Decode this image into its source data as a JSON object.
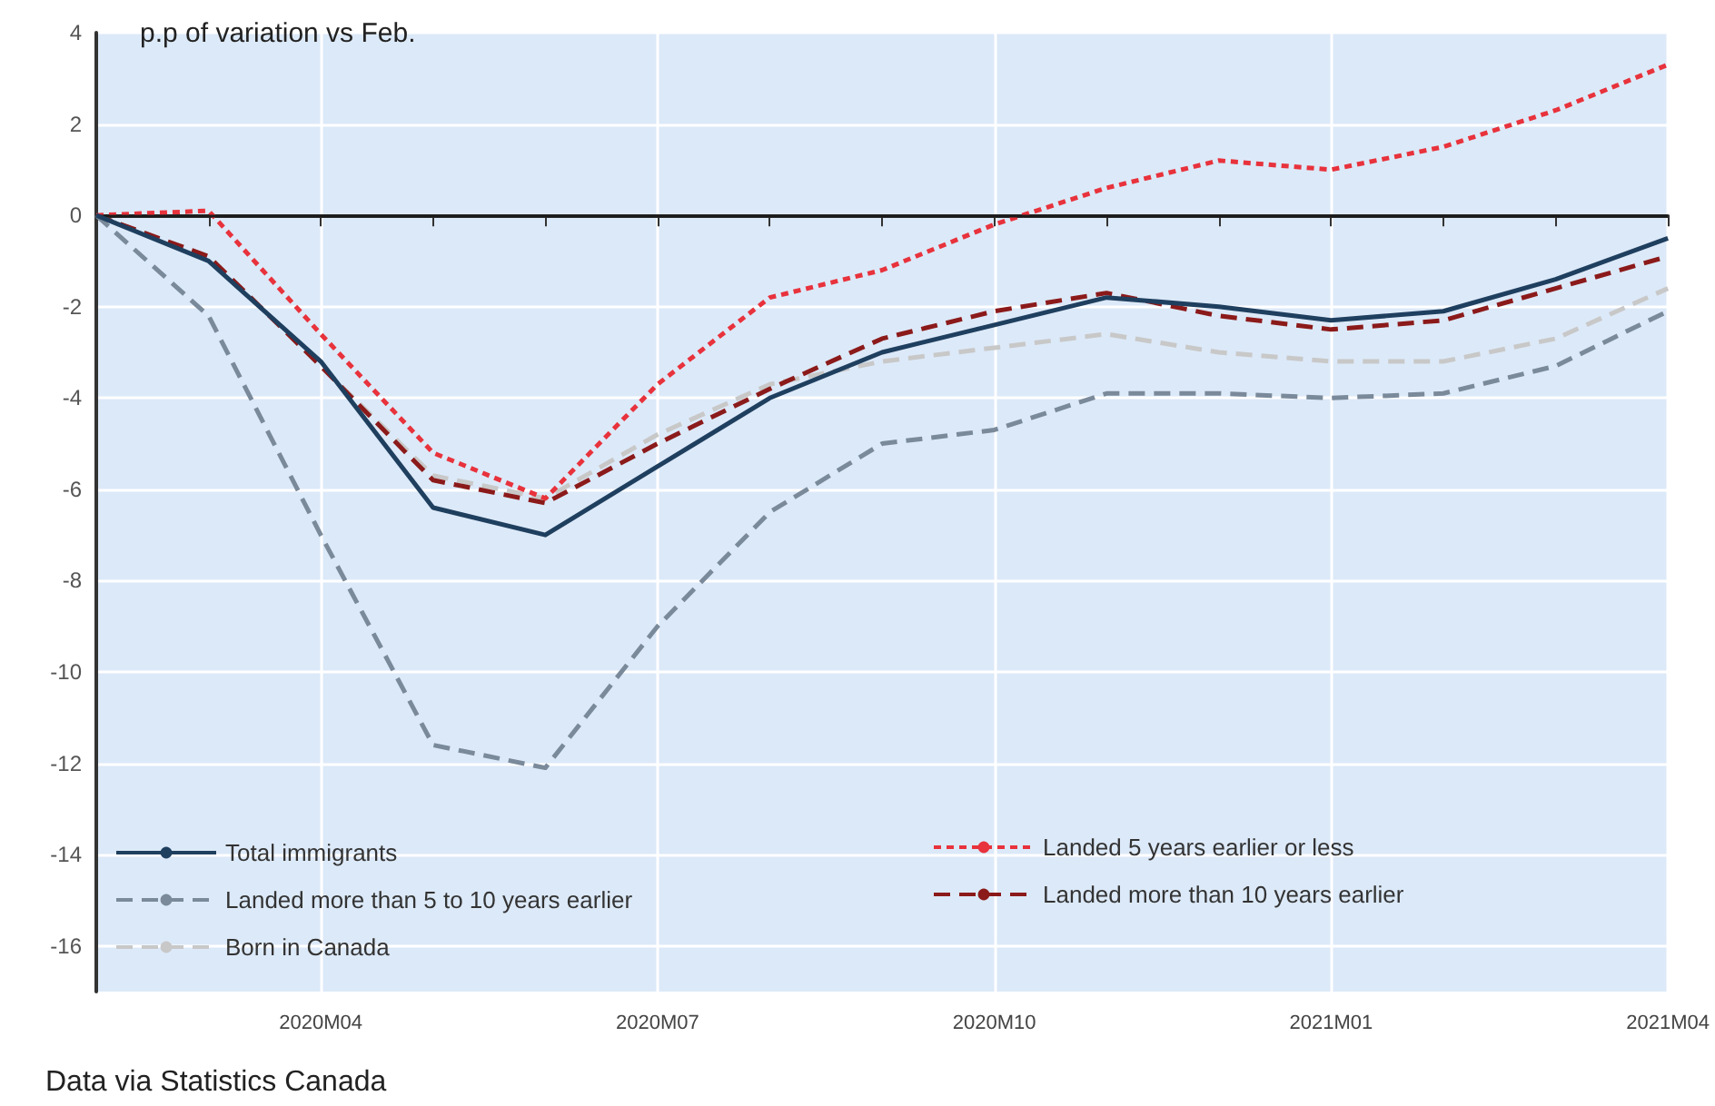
{
  "chart_data": {
    "type": "line",
    "ylabel": "p.p of variation vs Feb.",
    "categories": [
      null,
      null,
      "2020M04",
      null,
      null,
      "2020M07",
      null,
      null,
      "2020M10",
      null,
      null,
      "2021M01",
      null,
      null,
      "2021M04"
    ],
    "series": [
      {
        "name": "Total immigrants",
        "color": "#1f3f5f",
        "line_style": "solid",
        "values": [
          0,
          -1.0,
          -3.2,
          -6.4,
          -7.0,
          -5.5,
          -4.0,
          -3.0,
          -2.4,
          -1.8,
          -2.0,
          -2.3,
          -2.1,
          -1.4,
          -0.5
        ]
      },
      {
        "name": "Landed 5 years earlier or less",
        "color": "#e8323c",
        "line_style": "dotted",
        "values": [
          0,
          0.1,
          -2.6,
          -5.2,
          -6.2,
          -3.7,
          -1.8,
          -1.2,
          -0.2,
          0.6,
          1.2,
          1.0,
          1.5,
          2.3,
          3.3
        ]
      },
      {
        "name": "Landed more than 5 to 10 years earlier",
        "color": "#7a8a9a",
        "line_style": "dashed",
        "values": [
          0,
          -2.2,
          -7.0,
          -11.6,
          -12.1,
          -9.0,
          -6.5,
          -5.0,
          -4.7,
          -3.9,
          -3.9,
          -4.0,
          -3.9,
          -3.3,
          -2.1
        ]
      },
      {
        "name": "Landed more than 10 years earlier",
        "color": "#8b1a1a",
        "line_style": "dashed",
        "values": [
          0,
          -0.9,
          -3.3,
          -5.8,
          -6.3,
          -5.0,
          -3.8,
          -2.7,
          -2.1,
          -1.7,
          -2.2,
          -2.5,
          -2.3,
          -1.6,
          -0.9
        ]
      },
      {
        "name": "Born in Canada",
        "color": "#c8c8c8",
        "line_style": "dashed",
        "values": [
          0,
          -0.9,
          -3.3,
          -5.7,
          -6.2,
          -4.8,
          -3.7,
          -3.2,
          -2.9,
          -2.6,
          -3.0,
          -3.2,
          -3.2,
          -2.7,
          -1.6
        ]
      }
    ],
    "ylim": [
      -17,
      4
    ],
    "yticks": [
      -16,
      -14,
      -12,
      -10,
      -8,
      -6,
      -4,
      -2,
      0,
      2,
      4
    ],
    "ref_lines": [
      {
        "axis": "y",
        "value": 0,
        "color": "#1a1a1a"
      }
    ],
    "annotations": [
      "Data via Statistics Canada"
    ],
    "grid": true,
    "legend": "bottom left",
    "marker": "none"
  }
}
